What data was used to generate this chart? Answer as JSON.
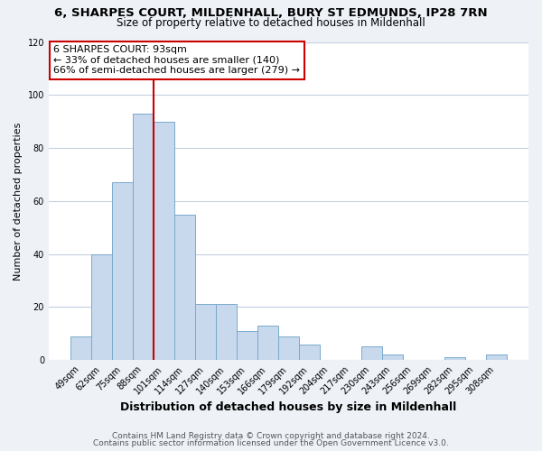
{
  "title": "6, SHARPES COURT, MILDENHALL, BURY ST EDMUNDS, IP28 7RN",
  "subtitle": "Size of property relative to detached houses in Mildenhall",
  "xlabel": "Distribution of detached houses by size in Mildenhall",
  "ylabel": "Number of detached properties",
  "bar_color": "#c8d8ed",
  "bar_edge_color": "#7aaacb",
  "categories": [
    "49sqm",
    "62sqm",
    "75sqm",
    "88sqm",
    "101sqm",
    "114sqm",
    "127sqm",
    "140sqm",
    "153sqm",
    "166sqm",
    "179sqm",
    "192sqm",
    "204sqm",
    "217sqm",
    "230sqm",
    "243sqm",
    "256sqm",
    "269sqm",
    "282sqm",
    "295sqm",
    "308sqm"
  ],
  "values": [
    9,
    40,
    67,
    93,
    90,
    55,
    21,
    21,
    11,
    13,
    9,
    6,
    0,
    0,
    5,
    2,
    0,
    0,
    1,
    0,
    2
  ],
  "ylim": [
    0,
    120
  ],
  "yticks": [
    0,
    20,
    40,
    60,
    80,
    100,
    120
  ],
  "marker_label": "6 SHARPES COURT: 93sqm",
  "annotation_line1": "← 33% of detached houses are smaller (140)",
  "annotation_line2": "66% of semi-detached houses are larger (279) →",
  "vline_category_index": 4,
  "footer1": "Contains HM Land Registry data © Crown copyright and database right 2024.",
  "footer2": "Contains public sector information licensed under the Open Government Licence v3.0.",
  "background_color": "#eef2f7",
  "plot_bg_color": "#ffffff",
  "grid_color": "#c5cfe0",
  "vline_color": "#cc0000",
  "annotation_box_color": "#ffffff",
  "annotation_box_edge": "#cc0000",
  "title_fontsize": 9.5,
  "subtitle_fontsize": 8.5,
  "xlabel_fontsize": 9,
  "ylabel_fontsize": 8,
  "tick_fontsize": 7,
  "footer_fontsize": 6.5,
  "annotation_fontsize": 8
}
